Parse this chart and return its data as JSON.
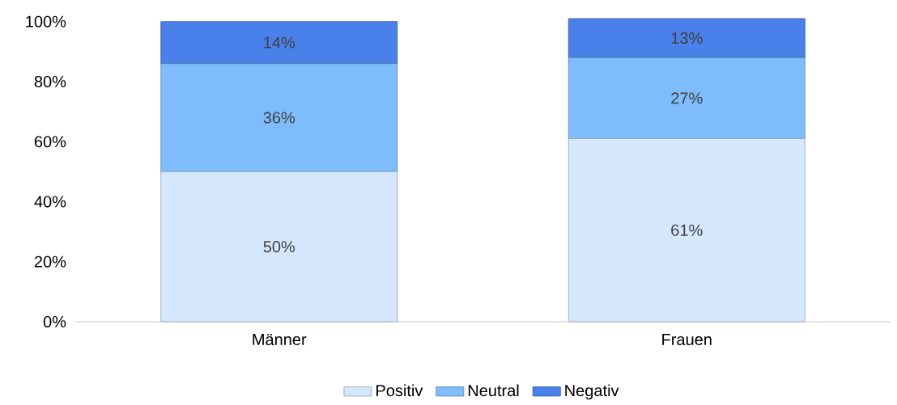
{
  "chart_data": {
    "type": "bar",
    "stacked": true,
    "categories": [
      "Männer",
      "Frauen"
    ],
    "ylim": [
      0,
      101
    ],
    "yticks": [
      {
        "value": 0,
        "label": "0%"
      },
      {
        "value": 20,
        "label": "20%"
      },
      {
        "value": 40,
        "label": "40%"
      },
      {
        "value": 60,
        "label": "60%"
      },
      {
        "value": 80,
        "label": "80%"
      },
      {
        "value": 100,
        "label": "100%"
      }
    ],
    "series": [
      {
        "name": "Positiv",
        "color": "#d4e7fc",
        "values": [
          50,
          61
        ],
        "value_labels": [
          "50%",
          "61%"
        ]
      },
      {
        "name": "Neutral",
        "color": "#7fbcfb",
        "values": [
          36,
          27
        ],
        "value_labels": [
          "36%",
          "27%"
        ]
      },
      {
        "name": "Negativ",
        "color": "#4a80ea",
        "values": [
          14,
          13
        ],
        "value_labels": [
          "14%",
          "13%"
        ]
      }
    ],
    "legend": "bottom",
    "grid": false
  }
}
